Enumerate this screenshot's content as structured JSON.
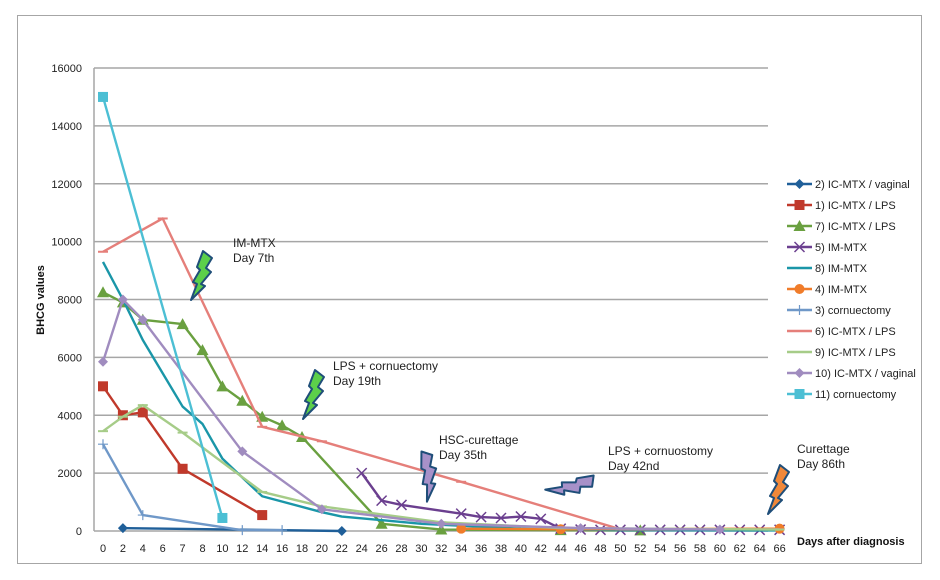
{
  "chart_data": {
    "type": "line",
    "title": "",
    "xlabel": "Days after diagnosis",
    "ylabel": "BHCG values",
    "ylim": [
      0,
      16000
    ],
    "yticks": [
      0,
      2000,
      4000,
      6000,
      8000,
      10000,
      12000,
      14000,
      16000
    ],
    "grid": true,
    "legend_position": "right",
    "categories": [
      "0",
      "2",
      "4",
      "6",
      "7",
      "8",
      "10",
      "12",
      "14",
      "16",
      "18",
      "20",
      "22",
      "24",
      "26",
      "28",
      "30",
      "32",
      "34",
      "36",
      "38",
      "40",
      "42",
      "44",
      "46",
      "48",
      "50",
      "52",
      "54",
      "56",
      "58",
      "60",
      "62",
      "64",
      "66"
    ],
    "series": [
      {
        "name": "2) IC-MTX / vaginal",
        "color": "#1f5f99",
        "marker": "diamond",
        "points": [
          [
            "2",
            100
          ],
          [
            "22",
            0
          ]
        ]
      },
      {
        "name": "1) IC-MTX / LPS",
        "color": "#c0392b",
        "marker": "square",
        "points": [
          [
            "0",
            5000
          ],
          [
            "2",
            4000
          ],
          [
            "4",
            4100
          ],
          [
            "7",
            2150
          ],
          [
            "14",
            550
          ]
        ]
      },
      {
        "name": "7) IC-MTX / LPS",
        "color": "#6aa040",
        "marker": "triangle",
        "points": [
          [
            "0",
            8250
          ],
          [
            "2",
            7900
          ],
          [
            "4",
            7300
          ],
          [
            "7",
            7150
          ],
          [
            "8",
            6250
          ],
          [
            "10",
            5000
          ],
          [
            "12",
            4500
          ],
          [
            "14",
            3950
          ],
          [
            "16",
            3650
          ],
          [
            "18",
            3250
          ],
          [
            "26",
            250
          ],
          [
            "32",
            50
          ],
          [
            "44",
            30
          ],
          [
            "52",
            20
          ]
        ]
      },
      {
        "name": "5) IM-MTX",
        "color": "#6b3f8f",
        "marker": "x",
        "points": [
          [
            "24",
            2000
          ],
          [
            "26",
            1050
          ],
          [
            "28",
            900
          ],
          [
            "34",
            600
          ],
          [
            "36",
            480
          ],
          [
            "38",
            450
          ],
          [
            "40",
            500
          ],
          [
            "42",
            420
          ],
          [
            "44",
            80
          ],
          [
            "46",
            50
          ],
          [
            "48",
            40
          ],
          [
            "50",
            40
          ],
          [
            "52",
            40
          ],
          [
            "54",
            40
          ],
          [
            "56",
            40
          ],
          [
            "58",
            40
          ],
          [
            "60",
            40
          ],
          [
            "62",
            40
          ],
          [
            "64",
            40
          ],
          [
            "66",
            40
          ]
        ]
      },
      {
        "name": "8) IM-MTX",
        "color": "#1a96a8",
        "marker": "none",
        "points": [
          [
            "0",
            9300
          ],
          [
            "2",
            8000
          ],
          [
            "4",
            6600
          ],
          [
            "7",
            4300
          ],
          [
            "8",
            3700
          ],
          [
            "10",
            2500
          ],
          [
            "14",
            1200
          ],
          [
            "20",
            650
          ],
          [
            "22",
            500
          ],
          [
            "30",
            250
          ],
          [
            "40",
            80
          ],
          [
            "50",
            30
          ],
          [
            "66",
            20
          ]
        ]
      },
      {
        "name": "4) IM-MTX",
        "color": "#f07c2a",
        "marker": "circle",
        "points": [
          [
            "34",
            80
          ],
          [
            "44",
            60
          ],
          [
            "66",
            80
          ]
        ]
      },
      {
        "name": "3) cornuectomy",
        "color": "#6f98c8",
        "marker": "plus",
        "points": [
          [
            "0",
            3000
          ],
          [
            "4",
            550
          ],
          [
            "12",
            30
          ],
          [
            "16",
            30
          ]
        ]
      },
      {
        "name": "6) IC-MTX / LPS",
        "color": "#e57f7a",
        "marker": "dash",
        "points": [
          [
            "0",
            9650
          ],
          [
            "6",
            10800
          ],
          [
            "14",
            3600
          ],
          [
            "20",
            3100
          ],
          [
            "34",
            1700
          ],
          [
            "50",
            60
          ],
          [
            "66",
            60
          ]
        ]
      },
      {
        "name": "9) IC-MTX / LPS",
        "color": "#a6cc88",
        "marker": "dash",
        "points": [
          [
            "0",
            3450
          ],
          [
            "2",
            3950
          ],
          [
            "4",
            4350
          ],
          [
            "7",
            3400
          ],
          [
            "14",
            1350
          ],
          [
            "20",
            850
          ],
          [
            "32",
            300
          ],
          [
            "44",
            100
          ],
          [
            "66",
            50
          ]
        ]
      },
      {
        "name": "10) IC-MTX / vaginal",
        "color": "#a08cbf",
        "marker": "diamond",
        "points": [
          [
            "0",
            5850
          ],
          [
            "2",
            8000
          ],
          [
            "4",
            7300
          ],
          [
            "12",
            2750
          ],
          [
            "20",
            750
          ],
          [
            "32",
            250
          ],
          [
            "46",
            100
          ],
          [
            "60",
            50
          ]
        ]
      },
      {
        "name": "11) cornuectomy",
        "color": "#4cbfd4",
        "marker": "square",
        "points": [
          [
            "0",
            15000
          ],
          [
            "10",
            450
          ]
        ]
      }
    ],
    "annotations": [
      {
        "line1": "IM-MTX",
        "line2": "Day 7th",
        "bolt_color": "#5ccf4a"
      },
      {
        "line1": "LPS + cornuectomy",
        "line2": "Day 19th",
        "bolt_color": "#5ccf4a"
      },
      {
        "line1": "HSC-curettage",
        "line2": "Day 35th",
        "bolt_color": "#a791c9"
      },
      {
        "line1": "LPS + cornuostomy",
        "line2": "Day 42nd",
        "bolt_color": "#a791c9"
      },
      {
        "line1": "Curettage",
        "line2": "Day 86th",
        "bolt_color": "#f0883a"
      }
    ]
  }
}
